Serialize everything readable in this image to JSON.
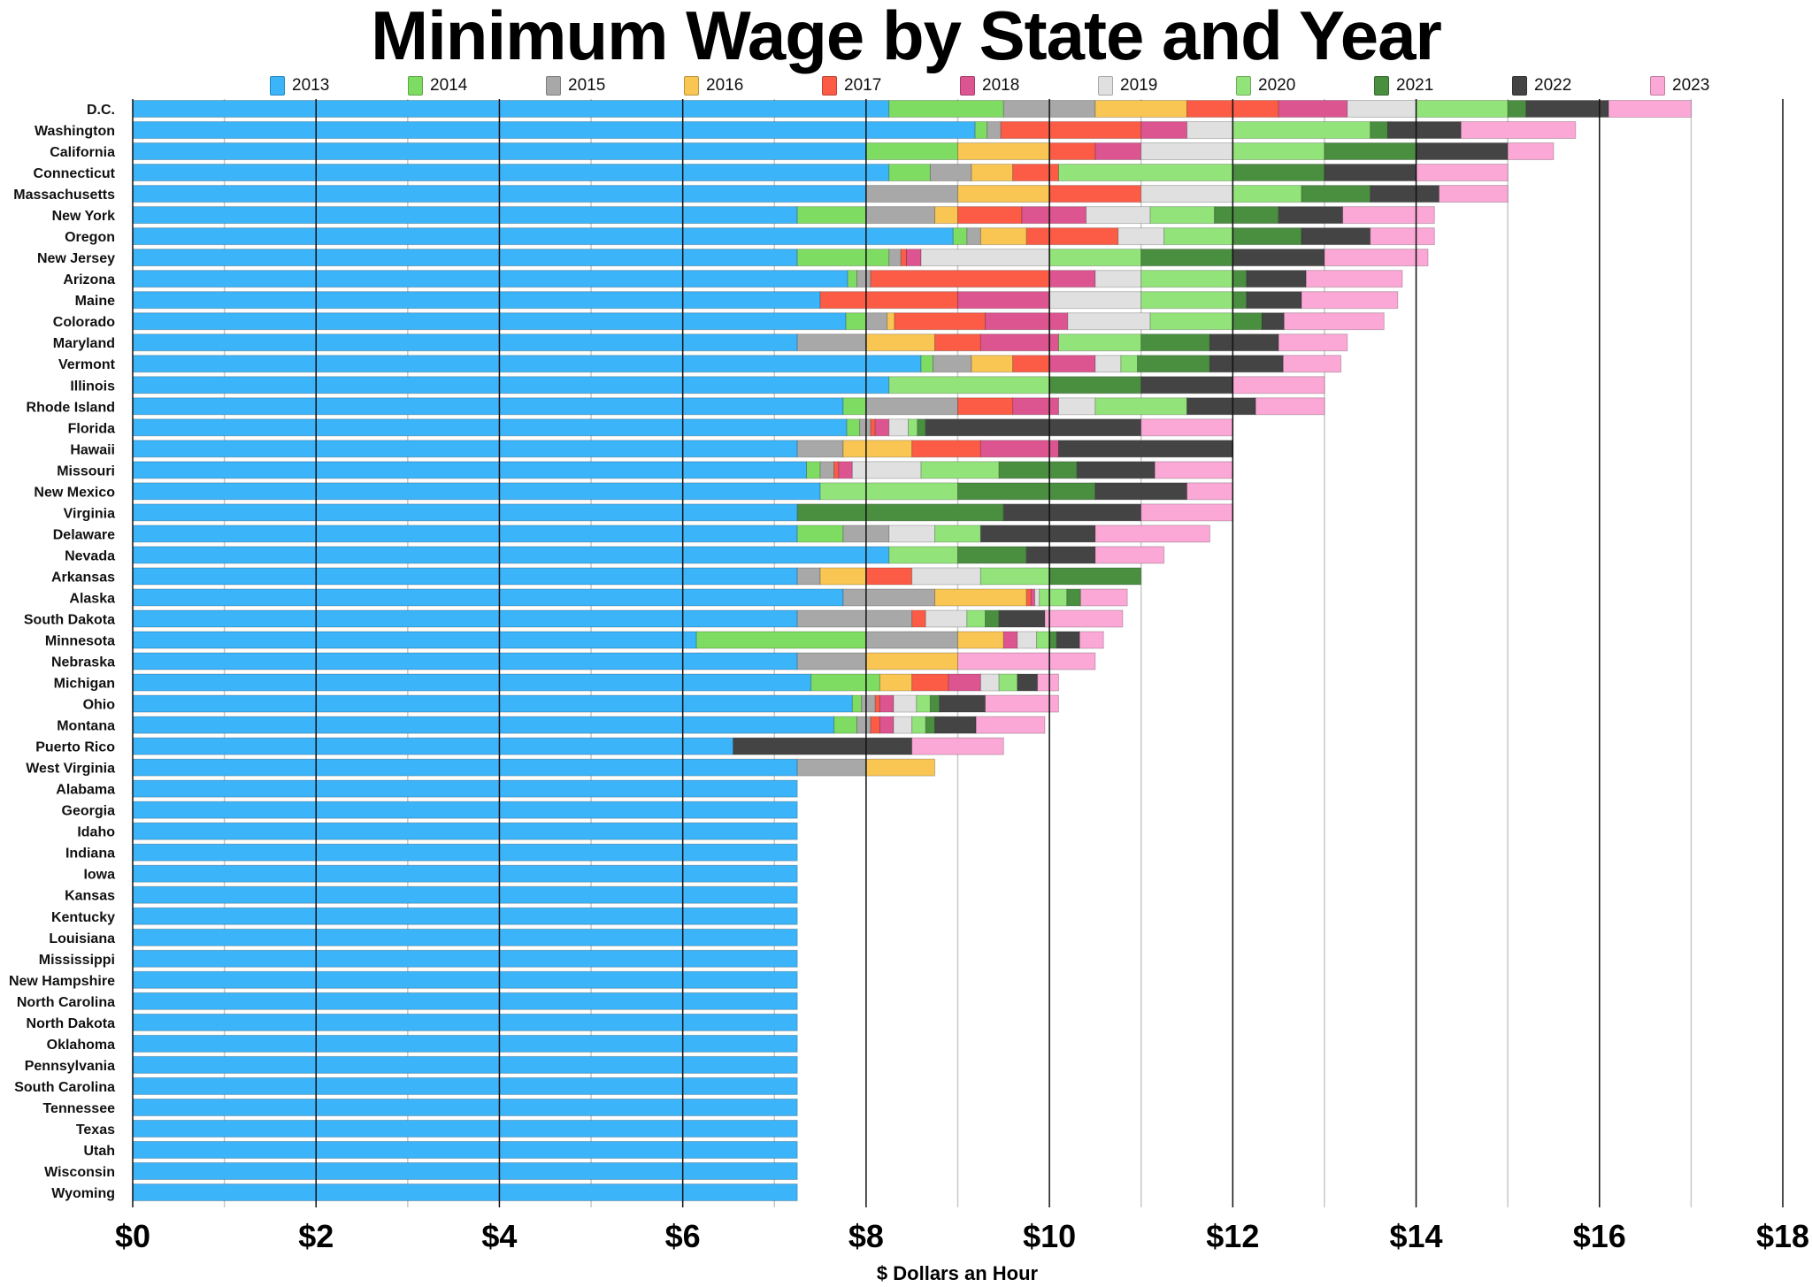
{
  "chart_data": {
    "type": "bar",
    "orientation": "horizontal",
    "stacked": true,
    "title": "Minimum Wage by State and Year",
    "xlabel": "$ Dollars an Hour",
    "ylabel": "",
    "xlim": [
      0,
      18
    ],
    "x_ticks": [
      "$0",
      "$2",
      "$4",
      "$6",
      "$8",
      "$10",
      "$12",
      "$14",
      "$16",
      "$18"
    ],
    "x_tick_values": [
      0,
      2,
      4,
      6,
      8,
      10,
      12,
      14,
      16,
      18
    ],
    "grid": "vertical lines every $1",
    "legend_position": "top",
    "note_values": "wage in effect each year (cumulative); each colored segment spans the increase from the previous year",
    "series": [
      {
        "name": "2013",
        "color": "#3bb4fa"
      },
      {
        "name": "2014",
        "color": "#7fdc62"
      },
      {
        "name": "2015",
        "color": "#a8a8a8"
      },
      {
        "name": "2016",
        "color": "#f9c653"
      },
      {
        "name": "2017",
        "color": "#fc5c46"
      },
      {
        "name": "2018",
        "color": "#dd5590"
      },
      {
        "name": "2019",
        "color": "#e0e0e0"
      },
      {
        "name": "2020",
        "color": "#92e47a"
      },
      {
        "name": "2021",
        "color": "#4a8e40"
      },
      {
        "name": "2022",
        "color": "#444444"
      },
      {
        "name": "2023",
        "color": "#fca8d6"
      }
    ],
    "categories": [
      {
        "state": "D.C.",
        "wages": [
          8.25,
          9.5,
          10.5,
          11.5,
          12.5,
          13.25,
          14.0,
          15.0,
          15.2,
          16.1,
          17.0
        ]
      },
      {
        "state": "Washington",
        "wages": [
          9.19,
          9.32,
          9.47,
          9.47,
          11.0,
          11.5,
          12.0,
          13.5,
          13.69,
          14.49,
          15.74
        ]
      },
      {
        "state": "California",
        "wages": [
          8.0,
          9.0,
          9.0,
          10.0,
          10.5,
          11.0,
          12.0,
          13.0,
          14.0,
          15.0,
          15.5
        ]
      },
      {
        "state": "Connecticut",
        "wages": [
          8.25,
          8.7,
          9.15,
          9.6,
          10.1,
          10.1,
          10.1,
          12.0,
          13.0,
          14.0,
          15.0
        ]
      },
      {
        "state": "Massachusetts",
        "wages": [
          8.0,
          8.0,
          9.0,
          10.0,
          11.0,
          11.0,
          12.0,
          12.75,
          13.5,
          14.25,
          15.0
        ]
      },
      {
        "state": "New York",
        "wages": [
          7.25,
          8.0,
          8.75,
          9.0,
          9.7,
          10.4,
          11.1,
          11.8,
          12.5,
          13.2,
          14.2
        ]
      },
      {
        "state": "Oregon",
        "wages": [
          8.95,
          9.1,
          9.25,
          9.75,
          10.75,
          10.75,
          11.25,
          12.0,
          12.75,
          13.5,
          14.2
        ]
      },
      {
        "state": "New Jersey",
        "wages": [
          7.25,
          8.25,
          8.38,
          8.38,
          8.44,
          8.6,
          10.0,
          11.0,
          12.0,
          13.0,
          14.13
        ]
      },
      {
        "state": "Arizona",
        "wages": [
          7.8,
          7.9,
          8.05,
          8.05,
          10.0,
          10.5,
          11.0,
          12.0,
          12.15,
          12.8,
          13.85
        ]
      },
      {
        "state": "Maine",
        "wages": [
          7.5,
          7.5,
          7.5,
          7.5,
          9.0,
          10.0,
          11.0,
          12.0,
          12.15,
          12.75,
          13.8
        ]
      },
      {
        "state": "Colorado",
        "wages": [
          7.78,
          8.0,
          8.23,
          8.31,
          9.3,
          10.2,
          11.1,
          12.0,
          12.32,
          12.56,
          13.65
        ]
      },
      {
        "state": "Maryland",
        "wages": [
          7.25,
          7.25,
          8.0,
          8.75,
          9.25,
          10.1,
          10.1,
          11.0,
          11.75,
          12.5,
          13.25
        ]
      },
      {
        "state": "Vermont",
        "wages": [
          8.6,
          8.73,
          9.15,
          9.6,
          10.0,
          10.5,
          10.78,
          10.96,
          11.75,
          12.55,
          13.18
        ]
      },
      {
        "state": "Illinois",
        "wages": [
          8.25,
          8.25,
          8.25,
          8.25,
          8.25,
          8.25,
          8.25,
          10.0,
          11.0,
          12.0,
          13.0
        ]
      },
      {
        "state": "Rhode Island",
        "wages": [
          7.75,
          8.0,
          9.0,
          9.0,
          9.6,
          10.1,
          10.5,
          11.5,
          11.5,
          12.25,
          13.0
        ]
      },
      {
        "state": "Florida",
        "wages": [
          7.79,
          7.93,
          8.05,
          8.05,
          8.1,
          8.25,
          8.46,
          8.56,
          8.65,
          11.0,
          12.0
        ]
      },
      {
        "state": "Hawaii",
        "wages": [
          7.25,
          7.25,
          7.75,
          8.5,
          9.25,
          10.1,
          10.1,
          10.1,
          10.1,
          12.0,
          12.0
        ]
      },
      {
        "state": "Missouri",
        "wages": [
          7.35,
          7.5,
          7.65,
          7.65,
          7.7,
          7.85,
          8.6,
          9.45,
          10.3,
          11.15,
          12.0
        ]
      },
      {
        "state": "New Mexico",
        "wages": [
          7.5,
          7.5,
          7.5,
          7.5,
          7.5,
          7.5,
          7.5,
          9.0,
          10.5,
          11.5,
          12.0
        ]
      },
      {
        "state": "Virginia",
        "wages": [
          7.25,
          7.25,
          7.25,
          7.25,
          7.25,
          7.25,
          7.25,
          7.25,
          9.5,
          11.0,
          12.0
        ]
      },
      {
        "state": "Delaware",
        "wages": [
          7.25,
          7.75,
          8.25,
          8.25,
          8.25,
          8.25,
          8.75,
          9.25,
          9.25,
          10.5,
          11.75
        ]
      },
      {
        "state": "Nevada",
        "wages": [
          8.25,
          8.25,
          8.25,
          8.25,
          8.25,
          8.25,
          8.25,
          9.0,
          9.75,
          10.5,
          11.25
        ]
      },
      {
        "state": "Arkansas",
        "wages": [
          7.25,
          7.25,
          7.5,
          8.0,
          8.5,
          8.5,
          9.25,
          10.0,
          11.0,
          11.0,
          11.0
        ]
      },
      {
        "state": "Alaska",
        "wages": [
          7.75,
          7.75,
          8.75,
          9.75,
          9.8,
          9.84,
          9.89,
          10.19,
          10.34,
          10.34,
          10.85
        ]
      },
      {
        "state": "South Dakota",
        "wages": [
          7.25,
          7.25,
          8.5,
          8.5,
          8.65,
          8.65,
          9.1,
          9.3,
          9.45,
          9.95,
          10.8
        ]
      },
      {
        "state": "Minnesota",
        "wages": [
          6.15,
          8.0,
          9.0,
          9.5,
          9.5,
          9.65,
          9.86,
          10.0,
          10.08,
          10.33,
          10.59
        ]
      },
      {
        "state": "Nebraska",
        "wages": [
          7.25,
          7.25,
          8.0,
          9.0,
          9.0,
          9.0,
          9.0,
          9.0,
          9.0,
          9.0,
          10.5
        ]
      },
      {
        "state": "Michigan",
        "wages": [
          7.4,
          8.15,
          8.15,
          8.5,
          8.9,
          9.25,
          9.45,
          9.65,
          9.65,
          9.87,
          10.1
        ]
      },
      {
        "state": "Ohio",
        "wages": [
          7.85,
          7.95,
          8.1,
          8.1,
          8.15,
          8.3,
          8.55,
          8.7,
          8.8,
          9.3,
          10.1
        ]
      },
      {
        "state": "Montana",
        "wages": [
          7.65,
          7.9,
          8.05,
          8.05,
          8.15,
          8.3,
          8.5,
          8.65,
          8.75,
          9.2,
          9.95
        ]
      },
      {
        "state": "Puerto Rico",
        "wages": [
          6.55,
          6.55,
          6.55,
          6.55,
          6.55,
          6.55,
          6.55,
          6.55,
          6.55,
          8.5,
          9.5
        ]
      },
      {
        "state": "West Virginia",
        "wages": [
          7.25,
          7.25,
          8.0,
          8.75,
          8.75,
          8.75,
          8.75,
          8.75,
          8.75,
          8.75,
          8.75
        ]
      },
      {
        "state": "Alabama",
        "wages": [
          7.25,
          7.25,
          7.25,
          7.25,
          7.25,
          7.25,
          7.25,
          7.25,
          7.25,
          7.25,
          7.25
        ]
      },
      {
        "state": "Georgia",
        "wages": [
          7.25,
          7.25,
          7.25,
          7.25,
          7.25,
          7.25,
          7.25,
          7.25,
          7.25,
          7.25,
          7.25
        ]
      },
      {
        "state": "Idaho",
        "wages": [
          7.25,
          7.25,
          7.25,
          7.25,
          7.25,
          7.25,
          7.25,
          7.25,
          7.25,
          7.25,
          7.25
        ]
      },
      {
        "state": "Indiana",
        "wages": [
          7.25,
          7.25,
          7.25,
          7.25,
          7.25,
          7.25,
          7.25,
          7.25,
          7.25,
          7.25,
          7.25
        ]
      },
      {
        "state": "Iowa",
        "wages": [
          7.25,
          7.25,
          7.25,
          7.25,
          7.25,
          7.25,
          7.25,
          7.25,
          7.25,
          7.25,
          7.25
        ]
      },
      {
        "state": "Kansas",
        "wages": [
          7.25,
          7.25,
          7.25,
          7.25,
          7.25,
          7.25,
          7.25,
          7.25,
          7.25,
          7.25,
          7.25
        ]
      },
      {
        "state": "Kentucky",
        "wages": [
          7.25,
          7.25,
          7.25,
          7.25,
          7.25,
          7.25,
          7.25,
          7.25,
          7.25,
          7.25,
          7.25
        ]
      },
      {
        "state": "Louisiana",
        "wages": [
          7.25,
          7.25,
          7.25,
          7.25,
          7.25,
          7.25,
          7.25,
          7.25,
          7.25,
          7.25,
          7.25
        ]
      },
      {
        "state": "Mississippi",
        "wages": [
          7.25,
          7.25,
          7.25,
          7.25,
          7.25,
          7.25,
          7.25,
          7.25,
          7.25,
          7.25,
          7.25
        ]
      },
      {
        "state": "New Hampshire",
        "wages": [
          7.25,
          7.25,
          7.25,
          7.25,
          7.25,
          7.25,
          7.25,
          7.25,
          7.25,
          7.25,
          7.25
        ]
      },
      {
        "state": "North Carolina",
        "wages": [
          7.25,
          7.25,
          7.25,
          7.25,
          7.25,
          7.25,
          7.25,
          7.25,
          7.25,
          7.25,
          7.25
        ]
      },
      {
        "state": "North Dakota",
        "wages": [
          7.25,
          7.25,
          7.25,
          7.25,
          7.25,
          7.25,
          7.25,
          7.25,
          7.25,
          7.25,
          7.25
        ]
      },
      {
        "state": "Oklahoma",
        "wages": [
          7.25,
          7.25,
          7.25,
          7.25,
          7.25,
          7.25,
          7.25,
          7.25,
          7.25,
          7.25,
          7.25
        ]
      },
      {
        "state": "Pennsylvania",
        "wages": [
          7.25,
          7.25,
          7.25,
          7.25,
          7.25,
          7.25,
          7.25,
          7.25,
          7.25,
          7.25,
          7.25
        ]
      },
      {
        "state": "South Carolina",
        "wages": [
          7.25,
          7.25,
          7.25,
          7.25,
          7.25,
          7.25,
          7.25,
          7.25,
          7.25,
          7.25,
          7.25
        ]
      },
      {
        "state": "Tennessee",
        "wages": [
          7.25,
          7.25,
          7.25,
          7.25,
          7.25,
          7.25,
          7.25,
          7.25,
          7.25,
          7.25,
          7.25
        ]
      },
      {
        "state": "Texas",
        "wages": [
          7.25,
          7.25,
          7.25,
          7.25,
          7.25,
          7.25,
          7.25,
          7.25,
          7.25,
          7.25,
          7.25
        ]
      },
      {
        "state": "Utah",
        "wages": [
          7.25,
          7.25,
          7.25,
          7.25,
          7.25,
          7.25,
          7.25,
          7.25,
          7.25,
          7.25,
          7.25
        ]
      },
      {
        "state": "Wisconsin",
        "wages": [
          7.25,
          7.25,
          7.25,
          7.25,
          7.25,
          7.25,
          7.25,
          7.25,
          7.25,
          7.25,
          7.25
        ]
      },
      {
        "state": "Wyoming",
        "wages": [
          7.25,
          7.25,
          7.25,
          7.25,
          7.25,
          7.25,
          7.25,
          7.25,
          7.25,
          7.25,
          7.25
        ]
      }
    ]
  }
}
